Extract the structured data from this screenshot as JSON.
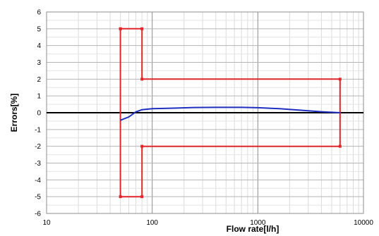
{
  "chart_data": {
    "type": "line",
    "xlabel": "Flow rate[l/h]",
    "ylabel": "Errors[%]",
    "xscale": "log",
    "xlim": [
      10,
      10000
    ],
    "ylim": [
      -6,
      6
    ],
    "x_ticks": [
      10,
      100,
      1000,
      10000
    ],
    "x_tick_labels": [
      "10",
      "100",
      "1000",
      "10000"
    ],
    "y_ticks": [
      6,
      5,
      4,
      3,
      2,
      1,
      0,
      -1,
      -2,
      -3,
      -4,
      -5,
      -6
    ],
    "y_tick_labels": [
      "6",
      "5",
      "4",
      "3",
      "2",
      "1",
      "0",
      "-1",
      "-2",
      "-3",
      "-4",
      "-5",
      "-6"
    ],
    "grid": true,
    "legend": "none",
    "series": [
      {
        "color": "#e0262b",
        "markers": true,
        "points": [
          [
            50,
            5
          ],
          [
            80,
            5
          ],
          [
            80,
            2
          ],
          [
            6000,
            2
          ],
          [
            6000,
            -2
          ],
          [
            80,
            -2
          ],
          [
            80,
            -5
          ],
          [
            50,
            -5
          ],
          [
            50,
            5
          ]
        ]
      },
      {
        "color": "#1f2fbf",
        "markers": false,
        "points": [
          [
            50,
            -0.45
          ],
          [
            60,
            -0.25
          ],
          [
            70,
            0.05
          ],
          [
            80,
            0.18
          ],
          [
            100,
            0.24
          ],
          [
            150,
            0.27
          ],
          [
            250,
            0.31
          ],
          [
            400,
            0.32
          ],
          [
            700,
            0.32
          ],
          [
            1000,
            0.3
          ],
          [
            1600,
            0.24
          ],
          [
            2500,
            0.15
          ],
          [
            4000,
            0.06
          ],
          [
            6000,
            0.0
          ]
        ]
      }
    ]
  }
}
